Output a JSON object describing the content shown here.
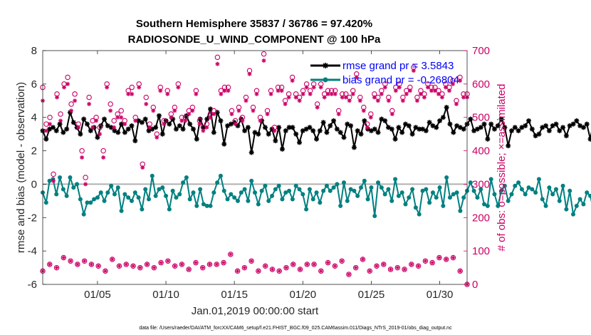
{
  "chart_data": {
    "type": "line",
    "title": "Southern Hemisphere 35837 / 36786 = 97.420%",
    "subtitle": "RADIOSONDE_U_WIND_COMPONENT @ 100 hPa",
    "xlabel": "Jan.01,2019 00:00:00 start",
    "ylabel_left": "rmse and bias (model - observation)",
    "ylabel_right": "# of obs: o=possible; ×=assimilated",
    "footnote": "data file: /Users/raeder/DAI/ATM_forcXX/CAM6_setup/f.e21.FHIST_BGC.f09_025.CAM6assim.011/Diags_NTrS_2019-01/obs_diag_output.nc",
    "xlim": [
      1.0,
      32.0
    ],
    "ylim_left": [
      -6,
      8
    ],
    "ylim_right": [
      0,
      700
    ],
    "x_ticks": [
      5,
      10,
      15,
      20,
      25,
      30
    ],
    "x_tick_labels": [
      "01/05",
      "01/10",
      "01/15",
      "01/20",
      "01/25",
      "01/30"
    ],
    "y_ticks_left": [
      "-6",
      "-4",
      "-2",
      "0",
      "2",
      "4",
      "6",
      "8"
    ],
    "y_ticks_right": [
      "0",
      "100",
      "200",
      "300",
      "400",
      "500",
      "600",
      "700"
    ],
    "legend": {
      "position": "top-right",
      "entries": [
        {
          "label": "rmse grand pr = 3.5843",
          "color": "#000000"
        },
        {
          "label": "bias grand pr = -0.26804",
          "color": "#008080"
        }
      ]
    },
    "step_days": 0.25,
    "series": [
      {
        "name": "rmse",
        "axis": "left",
        "color": "#000000",
        "marker": "asterisk",
        "values": [
          3.2,
          2.7,
          3.3,
          3.4,
          3.2,
          3.6,
          3.1,
          3.3,
          4.3,
          3.7,
          3.4,
          3.0,
          3.9,
          3.6,
          3.2,
          3.4,
          2.8,
          3.5,
          3.9,
          3.5,
          3.4,
          3.2,
          3.1,
          3.6,
          3.1,
          3.3,
          3.5,
          2.6,
          3.8,
          3.7,
          3.9,
          3.2,
          3.3,
          3.4,
          4.1,
          3.0,
          3.8,
          3.6,
          3.9,
          3.3,
          3.5,
          3.3,
          4.1,
          3.6,
          3.3,
          2.7,
          3.9,
          3.4,
          3.9,
          4.5,
          3.1,
          4.3,
          3.8,
          2.4,
          3.5,
          3.6,
          3.7,
          3.5,
          3.9,
          3.2,
          3.4,
          1.9,
          3.1,
          3.0,
          3.8,
          3.4,
          3.0,
          3.3,
          2.6,
          3.4,
          2.1,
          3.2,
          3.4,
          3.4,
          3.0,
          2.5,
          3.2,
          3.3,
          3.4,
          3.2,
          2.7,
          3.2,
          3.7,
          3.1,
          3.5,
          3.8,
          3.3,
          3.1,
          2.8,
          3.6,
          3.5,
          2.2,
          3.2,
          3.0,
          3.8,
          3.3,
          3.2,
          3.3,
          3.1,
          3.9,
          3.8,
          3.4,
          3.3,
          2.7,
          3.4,
          3.1,
          3.6,
          3.5,
          3.0,
          3.4,
          3.3,
          3.3,
          3.2,
          3.7,
          3.5,
          3.4,
          3.8,
          4.0,
          4.6,
          3.6,
          3.1,
          3.5,
          3.4,
          3.3,
          3.6,
          3.9,
          3.2,
          3.3,
          3.4,
          3.6,
          2.7,
          3.6,
          3.3,
          3.5,
          3.9,
          3.4,
          2.3,
          3.2,
          3.4,
          3.2,
          3.4,
          3.5,
          3.8,
          3.3,
          2.9,
          3.0,
          3.4,
          3.5,
          3.2,
          3.5,
          3.6,
          3.2,
          3.4,
          2.9,
          3.5,
          3.6,
          3.8,
          3.5,
          3.4,
          3.6,
          2.7,
          3.8,
          3.4,
          3.2,
          3.8,
          3.4,
          3.0,
          3.6,
          3.9,
          3.3,
          3.8,
          4.1,
          3.9,
          3.2,
          3.5,
          4.0,
          3.6,
          3.9,
          4.2,
          3.9,
          3.8,
          4.1,
          3.5,
          3.8,
          3.6,
          3.4,
          3.2,
          3.8,
          3.4,
          3.0,
          3.3,
          3.6,
          3.9,
          3.6,
          3.5,
          4.4,
          3.7,
          3.4,
          3.7,
          3.5,
          2.3,
          3.9,
          3.0,
          3.6,
          3.5,
          3.8,
          3.6,
          3.3,
          3.7,
          3.4,
          3.3,
          3.9,
          3.8,
          3.6,
          3.4,
          3.5,
          3.2,
          3.7,
          3.5,
          3.2,
          3.3,
          3.6,
          4.2,
          3.8,
          3.7,
          3.5,
          3.2,
          3.6,
          3.5,
          3.4,
          3.8,
          3.9,
          3.8
        ]
      },
      {
        "name": "bias",
        "axis": "left",
        "color": "#008080",
        "marker": "dot",
        "values": [
          -0.5,
          -1.1,
          0.2,
          0.3,
          -0.6,
          0.4,
          -0.3,
          -0.7,
          0.4,
          -0.2,
          0.0,
          -0.9,
          -1.8,
          -1.1,
          -1.1,
          -0.9,
          -0.8,
          -0.5,
          -1.0,
          -0.5,
          -0.1,
          -0.6,
          -0.2,
          -1.6,
          -0.6,
          -0.8,
          -1.0,
          -0.5,
          -0.8,
          -1.5,
          -0.3,
          -0.9,
          0.5,
          -0.7,
          -0.3,
          -0.2,
          -0.7,
          -1.5,
          -0.4,
          -0.8,
          -0.6,
          0.1,
          0.4,
          -0.9,
          -0.5,
          -1.3,
          -0.3,
          -1.2,
          -1.3,
          -1.3,
          -0.5,
          0.1,
          0.5,
          -0.4,
          -0.9,
          -0.6,
          -0.8,
          -1.0,
          -0.5,
          -0.3,
          -1.0,
          0.2,
          -0.5,
          -1.2,
          -0.4,
          -0.1,
          -1.0,
          -0.7,
          -0.3,
          -0.1,
          -0.9,
          -0.5,
          -0.4,
          -0.9,
          -0.1,
          -0.3,
          -0.6,
          -1.5,
          -0.3,
          -0.9,
          -0.5,
          -1.1,
          -0.4,
          -0.1,
          -0.4,
          -0.2,
          0.0,
          -1.3,
          0.1,
          -1.0,
          -0.3,
          -0.4,
          -0.7,
          -0.2,
          0.2,
          -0.9,
          -0.2,
          -1.9,
          0.1,
          -0.2,
          -0.6,
          -0.3,
          -1.0,
          0.3,
          -0.7,
          -0.5,
          -1.2,
          -0.8,
          -0.3,
          -1.4,
          -1.8,
          -0.4,
          -0.3,
          -1.1,
          -0.5,
          -0.8,
          -0.2,
          -1.3,
          0.4,
          -0.8,
          -0.6,
          -0.5,
          -1.6,
          -0.8,
          -0.4,
          0.1,
          -0.4,
          -0.8,
          -0.3,
          -1.2,
          -1.3,
          0.3,
          -0.6,
          -1.3,
          -0.4,
          -0.1,
          -1.0,
          -0.6,
          -0.1,
          0.1,
          -0.3,
          -0.6,
          -0.2,
          -0.3,
          -0.5,
          0.3,
          -0.9,
          -1.3,
          -0.2,
          -0.6,
          -0.3,
          -1.0,
          -0.1,
          -1.5,
          -0.4,
          -1.8,
          -1.3,
          -0.9,
          -1.2,
          -0.5,
          -0.7,
          -1.6,
          -1.1,
          -0.6,
          -0.4,
          -1.9,
          -1.5,
          -1.0,
          -0.6,
          -1.3,
          -0.9,
          -1.0,
          -1.2,
          -0.6,
          -1.1,
          -1.5,
          -0.7,
          -1.6,
          -1.3,
          -0.8,
          -0.9,
          -1.2,
          -1.7,
          -0.3,
          -1.0,
          -0.8,
          -1.1,
          -2.6,
          -1.2,
          -0.9,
          -1.5,
          -0.7,
          -1.5,
          -1.0,
          -0.5,
          -1.1,
          -0.3,
          -0.6,
          -1.0,
          -0.4,
          -0.2,
          -0.5,
          -0.8,
          0.2,
          -0.4,
          -0.1,
          -0.5,
          0.3,
          -0.3,
          -0.6,
          -0.2,
          -0.4,
          0.9,
          0.0,
          -0.3,
          0.2,
          -0.1,
          -0.3,
          0.3,
          -0.4,
          -0.7
        ]
      },
      {
        "name": "possible",
        "axis": "right",
        "color": "#cc0066",
        "marker": "circle",
        "values": [
          590,
          480,
          500,
          330,
          570,
          510,
          600,
          620,
          540,
          570,
          480,
          400,
          320,
          560,
          490,
          500,
          470,
          400,
          600,
          540,
          490,
          510,
          520,
          490,
          580,
          590,
          500,
          600,
          360,
          560,
          480,
          530,
          450,
          590,
          490,
          580,
          510,
          530,
          600,
          500,
          500,
          520,
          530,
          580,
          490,
          470,
          480,
          510,
          520,
          680,
          580,
          590,
          590,
          520,
          490,
          530,
          500,
          560,
          640,
          530,
          580,
          500,
          690,
          520,
          580,
          470,
          590,
          590,
          550,
          570,
          620,
          570,
          560,
          580,
          600,
          580,
          600,
          540,
          600,
          570,
          580,
          580,
          580,
          520,
          570,
          570,
          560,
          580,
          630,
          560,
          530,
          480,
          510,
          570,
          560,
          580,
          600,
          560,
          520,
          590,
          600,
          560,
          580,
          590,
          650,
          560,
          580,
          570,
          600,
          590,
          590,
          580,
          570,
          600,
          590,
          610,
          550,
          620,
          570,
          570
        ]
      },
      {
        "name": "assimilated",
        "axis": "right",
        "color": "#cc0066",
        "marker": "asterisk",
        "values": [
          550,
          460,
          480,
          310,
          560,
          490,
          590,
          600,
          520,
          550,
          470,
          380,
          300,
          540,
          470,
          490,
          450,
          380,
          590,
          520,
          470,
          500,
          500,
          480,
          570,
          570,
          490,
          590,
          350,
          540,
          470,
          520,
          440,
          580,
          480,
          570,
          500,
          520,
          590,
          490,
          490,
          510,
          520,
          570,
          480,
          460,
          470,
          500,
          510,
          660,
          570,
          580,
          580,
          510,
          480,
          520,
          490,
          550,
          630,
          520,
          570,
          490,
          670,
          510,
          570,
          460,
          580,
          580,
          540,
          560,
          610,
          560,
          550,
          570,
          590,
          570,
          590,
          530,
          590,
          560,
          570,
          570,
          570,
          510,
          560,
          560,
          550,
          570,
          620,
          550,
          520,
          470,
          500,
          560,
          550,
          570,
          590,
          550,
          510,
          580,
          590,
          550,
          570,
          580,
          640,
          550,
          570,
          560,
          590,
          580,
          580,
          570,
          560,
          590,
          580,
          600,
          540,
          610,
          560,
          560
        ]
      },
      {
        "name": "possible-bottom",
        "axis": "right",
        "color": "#cc0066",
        "marker": "circle",
        "values": [
          40,
          60,
          50,
          80,
          70,
          60,
          70,
          60,
          55,
          40,
          75,
          55,
          60,
          55,
          50,
          60,
          50,
          65,
          70,
          55,
          60,
          45,
          65,
          50,
          60,
          60,
          65,
          90,
          40,
          50,
          70,
          40,
          55,
          45,
          40,
          50,
          60,
          45,
          60,
          60,
          40,
          65,
          55,
          70,
          30,
          50,
          75,
          40,
          55,
          60,
          45,
          50,
          45,
          60,
          55,
          70,
          65,
          80,
          75,
          80,
          40,
          0
        ]
      }
    ]
  }
}
